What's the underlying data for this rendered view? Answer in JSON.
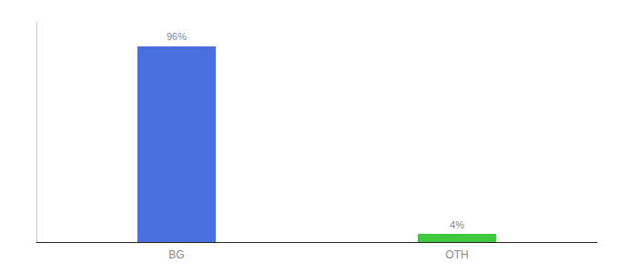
{
  "chart_data": {
    "type": "bar",
    "categories": [
      "BG",
      "OTH"
    ],
    "values": [
      96,
      4
    ],
    "value_labels": [
      "96%",
      "4%"
    ],
    "colors": [
      "#4a6fde",
      "#3ec93e"
    ],
    "ylim": [
      0,
      108
    ],
    "grid": false,
    "data_labels": true,
    "tick_labels": "x"
  }
}
